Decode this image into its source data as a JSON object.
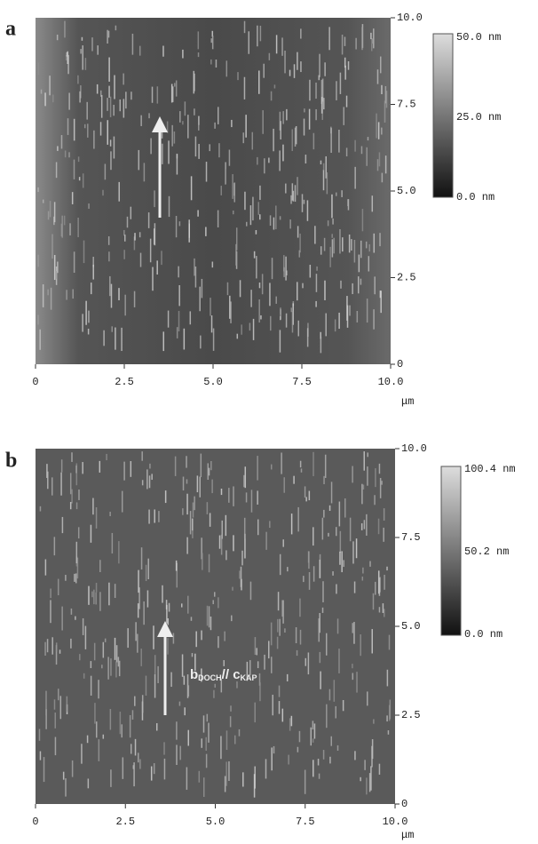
{
  "panels": [
    {
      "label": "a",
      "x_ticks": [
        "0",
        "2.5",
        "5.0",
        "7.5",
        "10.0"
      ],
      "y_ticks": [
        "0",
        "2.5",
        "5.0",
        "7.5",
        "10.0"
      ],
      "unit": "μm",
      "colorbar": [
        "50.0 nm",
        "25.0 nm",
        "0.0 nm"
      ]
    },
    {
      "label": "b",
      "x_ticks": [
        "0",
        "2.5",
        "5.0",
        "7.5",
        "10.0"
      ],
      "y_ticks": [
        "0",
        "2.5",
        "5.0",
        "7.5",
        "10.0"
      ],
      "unit": "μm",
      "colorbar": [
        "100.4 nm",
        "50.2 nm",
        "0.0 nm"
      ],
      "annotation": {
        "b": "b",
        "b_sub": "DOCH",
        "sep": "// ",
        "c": "c",
        "c_sub": "KAP"
      }
    }
  ]
}
